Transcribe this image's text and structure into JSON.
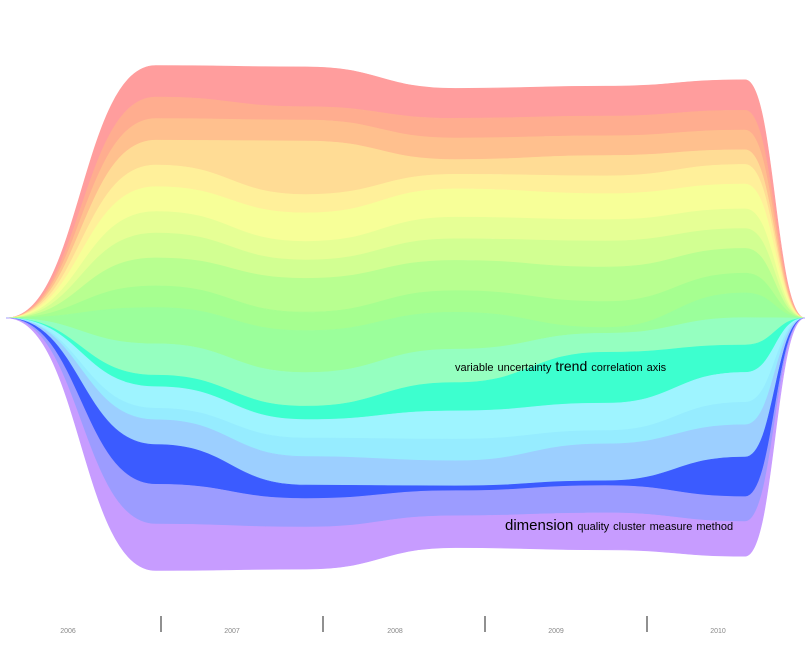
{
  "chart_data": {
    "type": "area",
    "subtype": "streamgraph",
    "x": [
      2006,
      2006.75,
      2007.5,
      2008.25,
      2009,
      2009.7,
      2010
    ],
    "x_tick_labels": [
      "2006",
      "2007",
      "2008",
      "2009",
      "2010"
    ],
    "grid": false,
    "legend": "none",
    "series": [
      {
        "values": [
          0,
          0.99,
          1.25,
          0.94,
          0.94,
          0.96,
          0
        ],
        "color": "#ff9d9d"
      },
      {
        "values": [
          0,
          0.68,
          0.42,
          0.62,
          0.62,
          0.62,
          0
        ],
        "color": "#ffad8f"
      },
      {
        "values": [
          0,
          0.68,
          0.66,
          0.68,
          0.62,
          0.62,
          0
        ],
        "color": "#ffc08e"
      },
      {
        "values": [
          0,
          0.78,
          1.68,
          0.46,
          0.64,
          0.46,
          0
        ],
        "color": "#ffdc95"
      },
      {
        "values": [
          0,
          0.68,
          0.58,
          0.46,
          0.56,
          0.62,
          0
        ],
        "color": "#fff09a"
      },
      {
        "values": [
          0,
          0.78,
          0.9,
          0.89,
          0.82,
          0.78,
          0
        ],
        "color": "#f7ff98"
      },
      {
        "values": [
          0,
          0.68,
          0.58,
          0.68,
          0.67,
          0.62,
          0
        ],
        "color": "#e6ff95"
      },
      {
        "values": [
          0,
          0.78,
          0.58,
          0.68,
          0.82,
          0.62,
          0
        ],
        "color": "#d2ff92"
      },
      {
        "values": [
          0,
          0.88,
          1.06,
          0.95,
          1.08,
          0.78,
          0
        ],
        "color": "#b8ff90"
      },
      {
        "values": [
          0,
          0.68,
          0.58,
          0.68,
          0.82,
          0.62,
          0
        ],
        "color": "#a6ff90"
      },
      {
        "values": [
          0,
          1.14,
          1.32,
          1.16,
          0.18,
          0.78,
          0
        ],
        "color": "#9bff9b"
      },
      {
        "values": [
          0,
          0.99,
          1.06,
          1.05,
          0.6,
          0.86,
          0
        ],
        "color": "#95ffc0"
      },
      {
        "values": [
          0,
          0.36,
          0.42,
          0.89,
          1.6,
          0.86,
          0
        ],
        "color": "#3dffcf"
      },
      {
        "values": [
          0,
          0.68,
          0.58,
          0.89,
          0.86,
          0.94,
          0
        ],
        "color": "#9ef4ff"
      },
      {
        "values": [
          0,
          0.36,
          0.58,
          0.68,
          0.42,
          0.71,
          0
        ],
        "color": "#96ecff"
      },
      {
        "values": [
          0,
          0.78,
          0.9,
          0.79,
          1.16,
          1.01,
          0
        ],
        "color": "#9ccfff"
      },
      {
        "values": [
          0,
          1.25,
          0.42,
          0.15,
          0.15,
          1.25,
          0
        ],
        "color": "#3b5bff"
      },
      {
        "values": [
          0,
          1.25,
          0.9,
          0.79,
          0.86,
          0.78,
          0
        ],
        "color": "#9c9cff"
      },
      {
        "values": [
          0,
          1.46,
          1.32,
          1.0,
          1.16,
          1.09,
          0
        ],
        "color": "#c79cff"
      }
    ],
    "annotations": [
      {
        "words": [
          "variable",
          "uncertainty",
          "trend",
          "correlation",
          "axis"
        ],
        "emphasis": "trend",
        "series_index": 12
      },
      {
        "words": [
          "dimension",
          "quality",
          "cluster",
          "measure",
          "method"
        ],
        "emphasis": "dimension",
        "series_index": 16
      }
    ]
  }
}
